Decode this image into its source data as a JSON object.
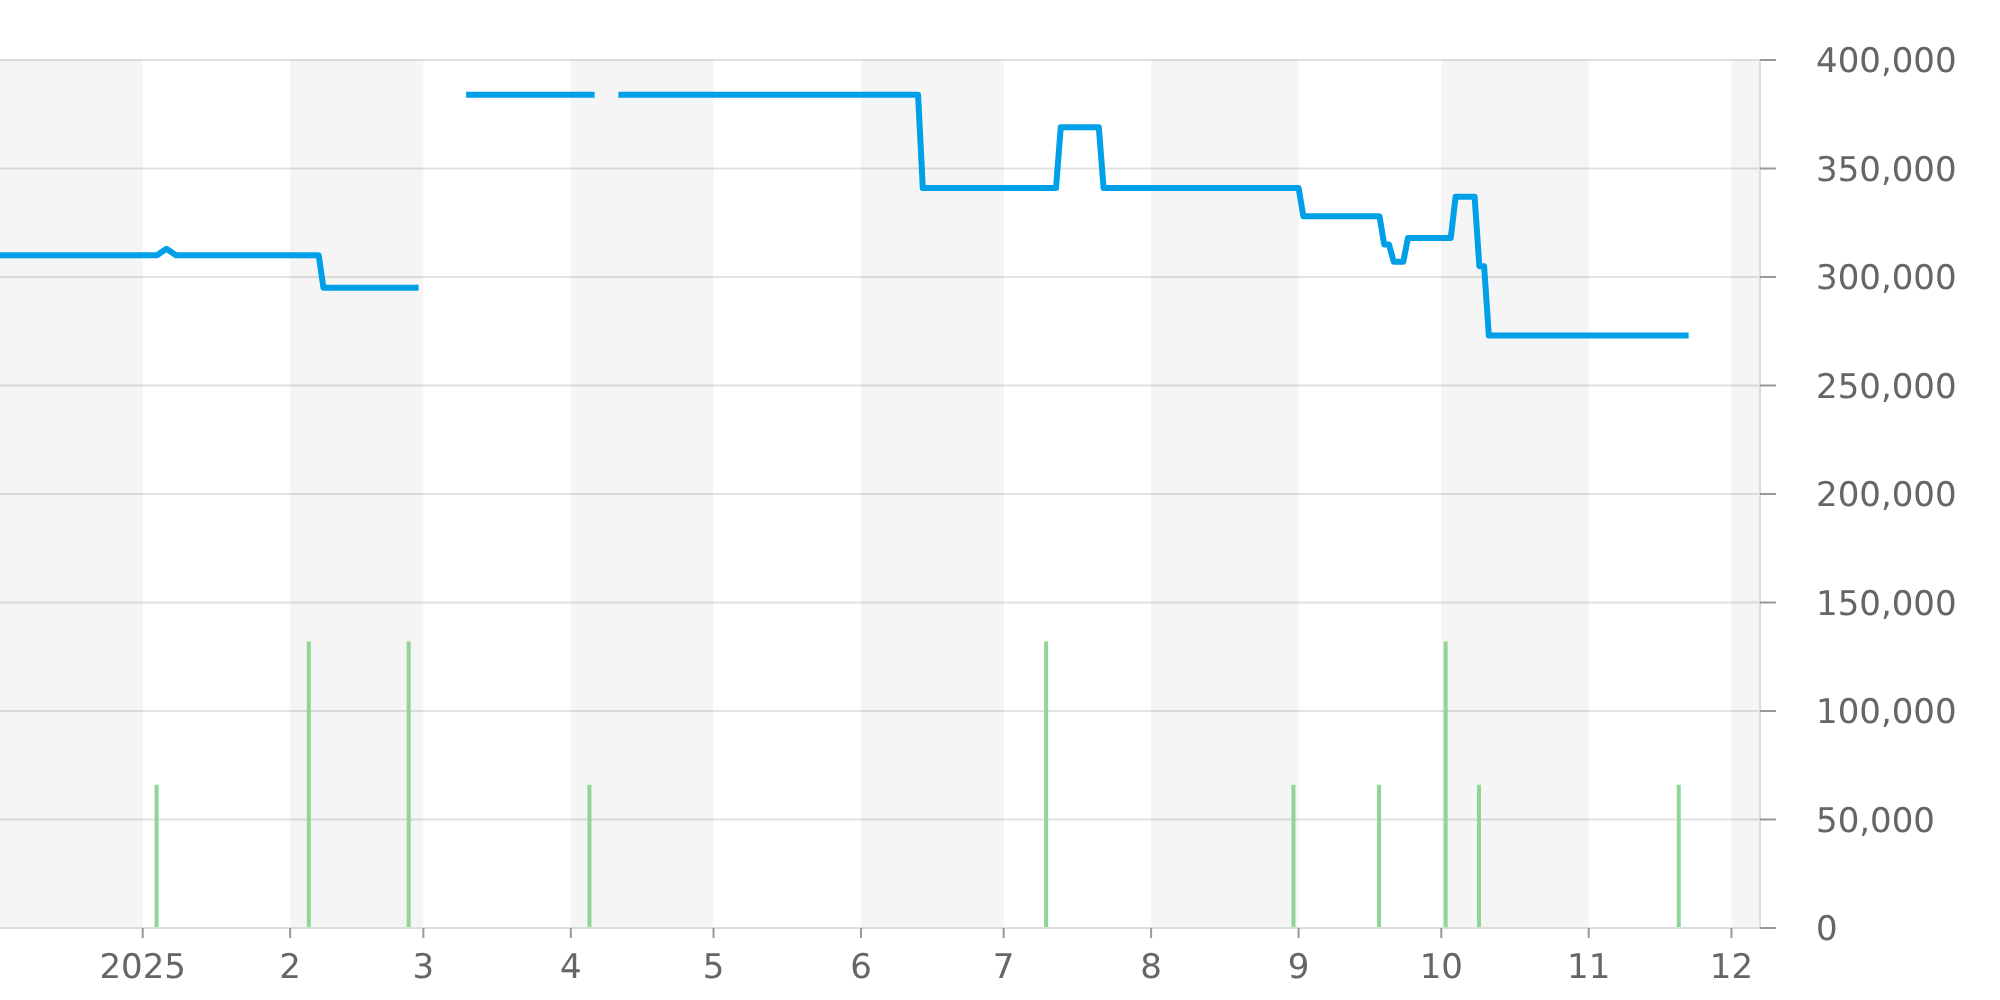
{
  "chart_data": {
    "type": "line",
    "series": [
      {
        "color": "#00a0e9",
        "x": [
          "2024-12-02",
          "2025-01-04",
          "2025-01-06",
          "2025-01-08",
          "2025-02-07",
          "2025-02-08",
          "2025-02-28",
          "2025-03-05",
          "2025-03-10",
          "2025-04-06",
          "2025-04-08",
          "2025-04-11",
          "2025-06-13",
          "2025-06-14",
          "2025-07-12",
          "2025-07-13",
          "2025-07-21",
          "2025-07-22",
          "2025-09-01",
          "2025-09-02",
          "2025-09-18",
          "2025-09-19",
          "2025-09-20",
          "2025-09-21",
          "2025-09-23",
          "2025-09-24",
          "2025-10-03",
          "2025-10-04",
          "2025-10-08",
          "2025-10-09",
          "2025-10-10",
          "2025-10-11",
          "2025-11-22"
        ],
        "values": [
          310000,
          310000,
          313000,
          310000,
          310000,
          295000,
          295000,
          null,
          384000,
          384000,
          null,
          384000,
          384000,
          341000,
          341000,
          369000,
          369000,
          341000,
          341000,
          328000,
          328000,
          315000,
          315000,
          307000,
          307000,
          318000,
          318000,
          337000,
          337000,
          305000,
          305000,
          273000,
          273000
        ]
      },
      {
        "type": "bar",
        "color": "#8fd694",
        "x": [
          "2025-01-04",
          "2025-02-05",
          "2025-02-26",
          "2025-04-05",
          "2025-07-10",
          "2025-08-31",
          "2025-09-18",
          "2025-10-02",
          "2025-10-09",
          "2025-11-20"
        ],
        "values": [
          66000,
          132000,
          132000,
          66000,
          132000,
          66000,
          66000,
          132000,
          66000,
          66000
        ]
      }
    ],
    "xlim": [
      "2024-12-02",
      "2025-12-07"
    ],
    "xticks": [
      {
        "value": "2025-01-01",
        "label": "2025"
      },
      {
        "value": "2025-02-01",
        "label": "2"
      },
      {
        "value": "2025-03-01",
        "label": "3"
      },
      {
        "value": "2025-04-01",
        "label": "4"
      },
      {
        "value": "2025-05-01",
        "label": "5"
      },
      {
        "value": "2025-06-01",
        "label": "6"
      },
      {
        "value": "2025-07-01",
        "label": "7"
      },
      {
        "value": "2025-08-01",
        "label": "8"
      },
      {
        "value": "2025-09-01",
        "label": "9"
      },
      {
        "value": "2025-10-01",
        "label": "10"
      },
      {
        "value": "2025-11-01",
        "label": "11"
      },
      {
        "value": "2025-12-01",
        "label": "12"
      }
    ],
    "ylim": [
      0,
      400000
    ],
    "yticks": [
      0,
      {
        "value": 50000,
        "label": "50,000"
      },
      {
        "value": 100000,
        "label": "100,000"
      },
      {
        "value": 150000,
        "label": "150,000"
      },
      {
        "value": 200000,
        "label": "200,000"
      },
      {
        "value": 250000,
        "label": "250,000"
      },
      {
        "value": 300000,
        "label": "300,000"
      },
      {
        "value": 350000,
        "label": "350,000"
      },
      {
        "value": 400000,
        "label": "400,000"
      }
    ],
    "grid": "y",
    "bands": [
      {
        "axis": "x",
        "from": "2024-12-02",
        "to": "2025-01-01",
        "color": "#f5f5f5"
      },
      {
        "axis": "x",
        "from": "2025-02-01",
        "to": "2025-03-01",
        "color": "#f5f5f5"
      },
      {
        "axis": "x",
        "from": "2025-04-01",
        "to": "2025-05-01",
        "color": "#f5f5f5"
      },
      {
        "axis": "x",
        "from": "2025-06-01",
        "to": "2025-07-01",
        "color": "#f5f5f5"
      },
      {
        "axis": "x",
        "from": "2025-08-01",
        "to": "2025-09-01",
        "color": "#f5f5f5"
      },
      {
        "axis": "x",
        "from": "2025-10-01",
        "to": "2025-11-01",
        "color": "#f5f5f5"
      },
      {
        "axis": "x",
        "from": "2025-12-01",
        "to": "2025-12-07",
        "color": "#f5f5f5"
      }
    ]
  }
}
